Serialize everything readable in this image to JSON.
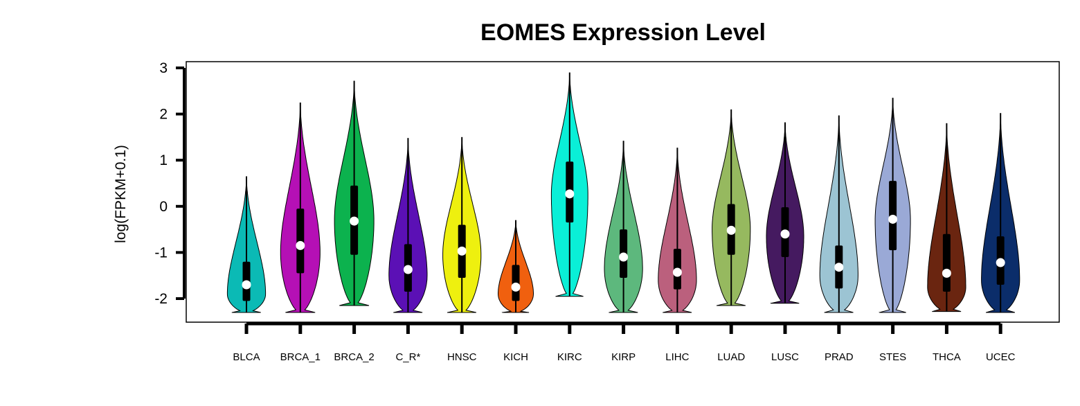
{
  "chart_data": {
    "type": "violin",
    "title": "EOMES Expression Level",
    "xlabel": "",
    "ylabel": "log(FPKM+0.1)",
    "ylim": [
      -2.5,
      3.1
    ],
    "yticks": [
      -2,
      -1,
      0,
      1,
      2,
      3
    ],
    "grid": false,
    "legend": "none",
    "categories": [
      "BLCA",
      "BRCA_1",
      "BRCA_2",
      "C_R*",
      "HNSC",
      "KICH",
      "KIRC",
      "KIRP",
      "LIHC",
      "LUAD",
      "LUSC",
      "PRAD",
      "STES",
      "THCA",
      "UCEC"
    ],
    "colors": [
      "#0BBAB5",
      "#B510B5",
      "#0CB24E",
      "#5B10B5",
      "#EEF00F",
      "#F0600F",
      "#0AEFD7",
      "#5DB87D",
      "#BB607D",
      "#96B95F",
      "#451A60",
      "#9CC4D3",
      "#9AA9D6",
      "#6A2510",
      "#0B2D6A"
    ],
    "stats": [
      {
        "min": -2.3,
        "max": 0.65,
        "q1": -2.05,
        "median": -1.7,
        "q3": -1.2,
        "whisker_lo": -2.3,
        "whisker_hi": 0.65,
        "mode": -1.9,
        "half_width": 0.92
      },
      {
        "min": -2.3,
        "max": 2.25,
        "q1": -1.45,
        "median": -0.85,
        "q3": -0.05,
        "whisker_lo": -2.3,
        "whisker_hi": 2.25,
        "mode": -1.0,
        "half_width": 0.95
      },
      {
        "min": -2.15,
        "max": 2.72,
        "q1": -1.05,
        "median": -0.32,
        "q3": 0.45,
        "whisker_lo": -2.15,
        "whisker_hi": 2.72,
        "mode": -0.3,
        "half_width": 0.95
      },
      {
        "min": -2.3,
        "max": 1.48,
        "q1": -1.85,
        "median": -1.37,
        "q3": -0.82,
        "whisker_lo": -2.3,
        "whisker_hi": 1.48,
        "mode": -1.5,
        "half_width": 0.92
      },
      {
        "min": -2.3,
        "max": 1.5,
        "q1": -1.55,
        "median": -0.97,
        "q3": -0.4,
        "whisker_lo": -2.3,
        "whisker_hi": 1.5,
        "mode": -1.05,
        "half_width": 0.92
      },
      {
        "min": -2.3,
        "max": -0.3,
        "q1": -2.05,
        "median": -1.75,
        "q3": -1.27,
        "whisker_lo": -2.3,
        "whisker_hi": -0.3,
        "mode": -1.9,
        "half_width": 0.85
      },
      {
        "min": -1.95,
        "max": 2.9,
        "q1": -0.35,
        "median": 0.27,
        "q3": 0.97,
        "whisker_lo": -1.95,
        "whisker_hi": 2.9,
        "mode": 0.25,
        "half_width": 0.88
      },
      {
        "min": -2.3,
        "max": 1.42,
        "q1": -1.55,
        "median": -1.1,
        "q3": -0.5,
        "whisker_lo": -2.3,
        "whisker_hi": 1.42,
        "mode": -1.35,
        "half_width": 0.92
      },
      {
        "min": -2.3,
        "max": 1.27,
        "q1": -1.8,
        "median": -1.43,
        "q3": -0.92,
        "whisker_lo": -2.3,
        "whisker_hi": 1.27,
        "mode": -1.6,
        "half_width": 0.92
      },
      {
        "min": -2.15,
        "max": 2.1,
        "q1": -1.05,
        "median": -0.52,
        "q3": 0.05,
        "whisker_lo": -2.15,
        "whisker_hi": 2.1,
        "mode": -0.5,
        "half_width": 0.92
      },
      {
        "min": -2.1,
        "max": 1.82,
        "q1": -1.1,
        "median": -0.6,
        "q3": -0.02,
        "whisker_lo": -2.1,
        "whisker_hi": 1.82,
        "mode": -0.65,
        "half_width": 0.9
      },
      {
        "min": -2.3,
        "max": 1.97,
        "q1": -1.78,
        "median": -1.32,
        "q3": -0.85,
        "whisker_lo": -2.3,
        "whisker_hi": 1.97,
        "mode": -1.5,
        "half_width": 0.92
      },
      {
        "min": -2.3,
        "max": 2.35,
        "q1": -0.95,
        "median": -0.28,
        "q3": 0.55,
        "whisker_lo": -2.3,
        "whisker_hi": 2.35,
        "mode": -0.3,
        "half_width": 0.85
      },
      {
        "min": -2.28,
        "max": 1.8,
        "q1": -1.85,
        "median": -1.45,
        "q3": -0.6,
        "whisker_lo": -2.28,
        "whisker_hi": 1.8,
        "mode": -1.75,
        "half_width": 0.92
      },
      {
        "min": -2.3,
        "max": 2.02,
        "q1": -1.7,
        "median": -1.22,
        "q3": -0.65,
        "whisker_lo": -2.3,
        "whisker_hi": 2.02,
        "mode": -1.6,
        "half_width": 0.92
      }
    ]
  }
}
